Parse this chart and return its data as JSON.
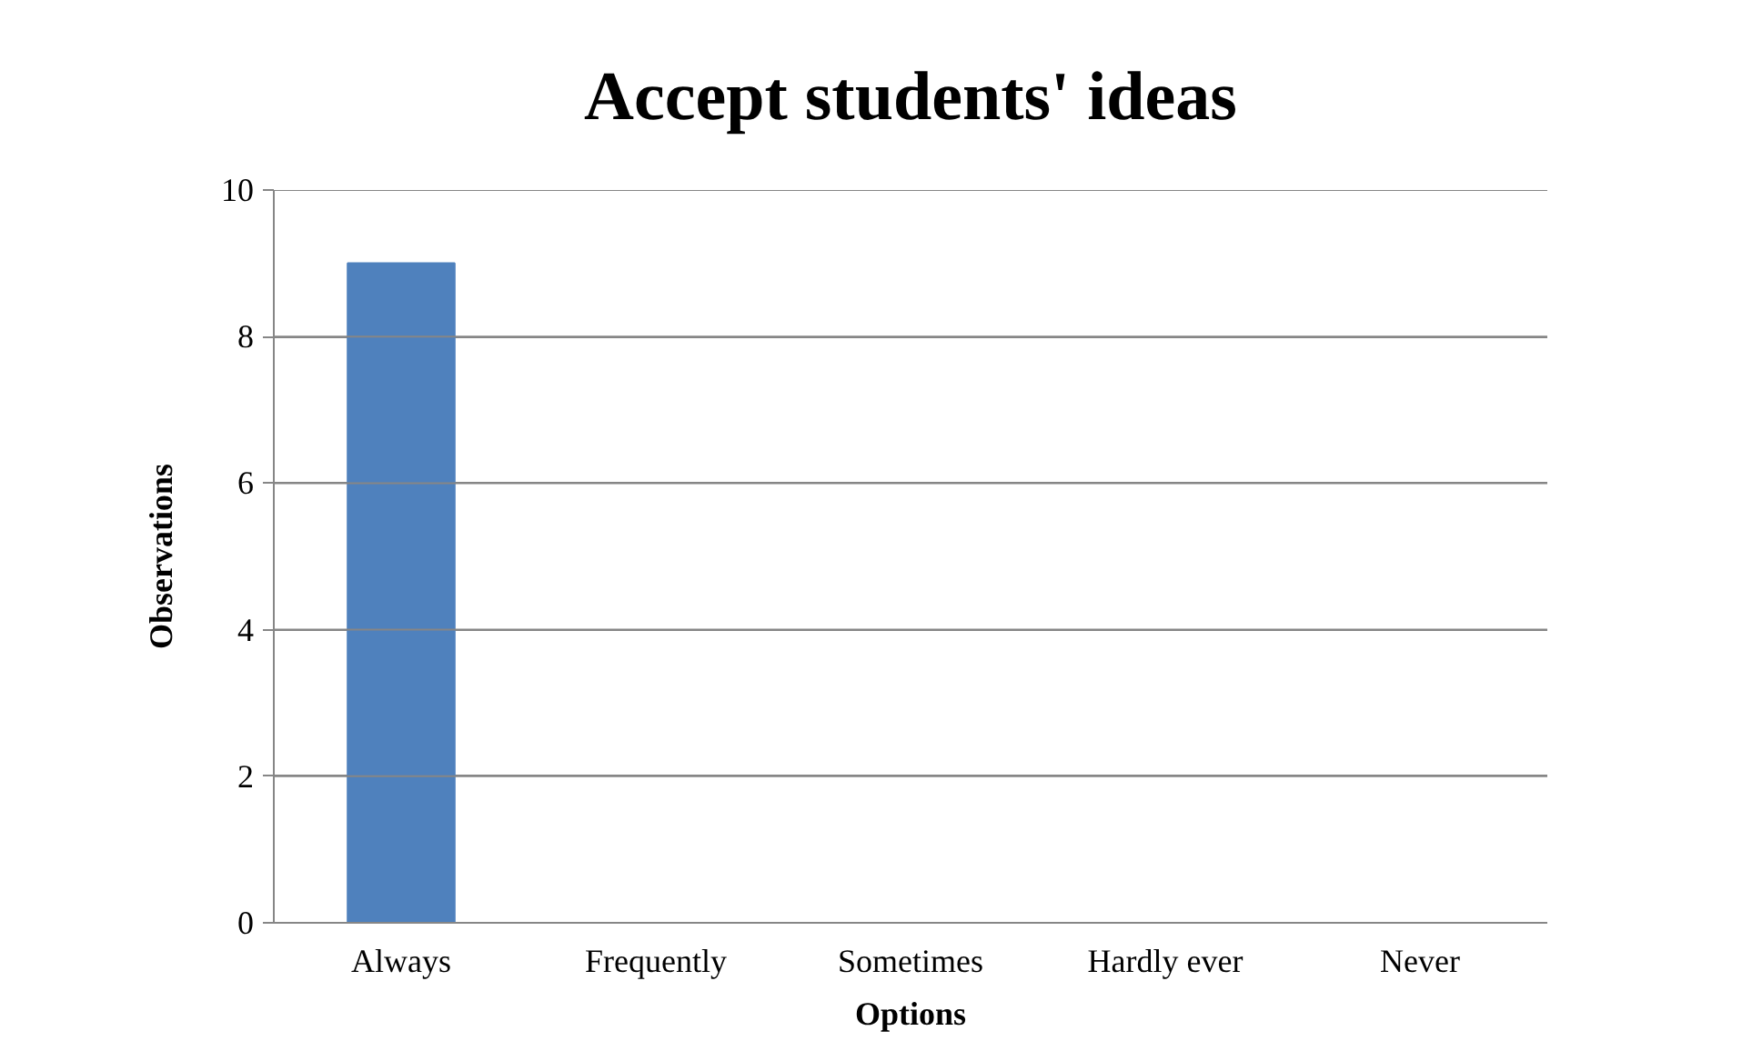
{
  "chart_data": {
    "type": "bar",
    "title": "Accept students' ideas",
    "xlabel": "Options",
    "ylabel": "Observations",
    "categories": [
      "Always",
      "Frequently",
      "Sometimes",
      "Hardly ever",
      "Never"
    ],
    "values": [
      9,
      0,
      0,
      0,
      0
    ],
    "color": "#4f81bd",
    "ylim": [
      0,
      10
    ],
    "yticks": [
      0,
      2,
      4,
      6,
      8,
      10
    ],
    "grid": "y"
  }
}
